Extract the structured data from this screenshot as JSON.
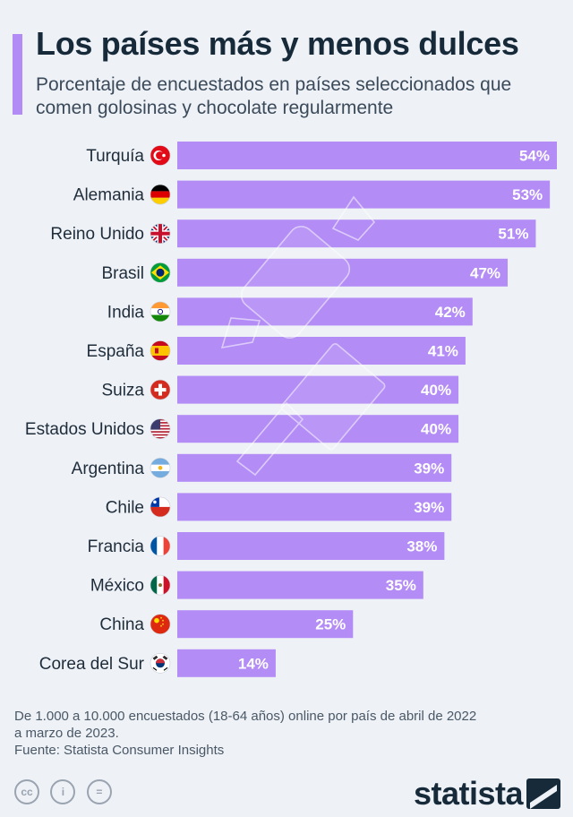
{
  "header": {
    "title": "Los países más y menos dulces",
    "subtitle": "Porcentaje de encuestados en países seleccionados que comen golosinas y chocolate regularmente"
  },
  "chart_data": {
    "type": "bar",
    "orientation": "horizontal",
    "categories": [
      "Turquía",
      "Alemania",
      "Reino Unido",
      "Brasil",
      "India",
      "España",
      "Suiza",
      "Estados Unidos",
      "Argentina",
      "Chile",
      "Francia",
      "México",
      "China",
      "Corea del Sur"
    ],
    "values": [
      54,
      53,
      51,
      47,
      42,
      41,
      40,
      40,
      39,
      39,
      38,
      35,
      25,
      14
    ],
    "value_labels": [
      "54%",
      "53%",
      "51%",
      "47%",
      "42%",
      "41%",
      "40%",
      "40%",
      "39%",
      "39%",
      "38%",
      "35%",
      "25%",
      "14%"
    ],
    "xlim": [
      0,
      54
    ],
    "grid": false,
    "legend": "none",
    "bar_color": "#b38cf5",
    "flag_icons": [
      "turkey-flag-icon",
      "germany-flag-icon",
      "uk-flag-icon",
      "brazil-flag-icon",
      "india-flag-icon",
      "spain-flag-icon",
      "switzerland-flag-icon",
      "usa-flag-icon",
      "argentina-flag-icon",
      "chile-flag-icon",
      "france-flag-icon",
      "mexico-flag-icon",
      "china-flag-icon",
      "south-korea-flag-icon"
    ]
  },
  "footer": {
    "note": "De 1.000 a 10.000 encuestados (18-64 años) online por país de abril de 2022 a marzo de 2023.",
    "source": "Fuente: Statista Consumer Insights"
  },
  "license_icons": [
    "cc-icon",
    "by-icon",
    "nd-icon"
  ],
  "license_glyphs": [
    "cc",
    "i",
    "="
  ],
  "logo": {
    "text": "statista"
  },
  "colors": {
    "accent": "#b28cf4",
    "bar": "#b38cf5",
    "title": "#172a3a",
    "background": "#eef1f6"
  }
}
